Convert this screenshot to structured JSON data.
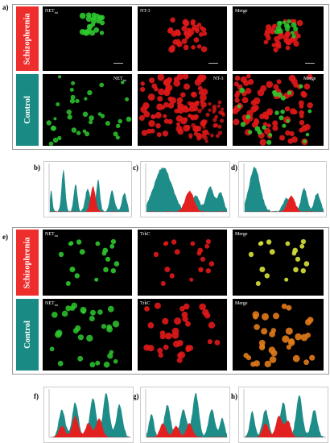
{
  "figure": {
    "labels": {
      "a": "a)",
      "b": "b)",
      "c": "c)",
      "d": "d)",
      "e": "e)",
      "f": "f)",
      "g": "g)",
      "h": "h)"
    }
  },
  "block_a": {
    "row1_label": "Schizophrenia",
    "row2_label": "Control",
    "row1_panels": [
      {
        "text_main": "NET",
        "text_sub": "int"
      },
      {
        "text_main": "NT-3",
        "text_sub": ""
      },
      {
        "text_main": "Merge",
        "text_sub": ""
      }
    ],
    "row2_panels": [
      {
        "text_main": "NET",
        "text_sub": "int"
      },
      {
        "text_main": "NT-3",
        "text_sub": ""
      },
      {
        "text_main": "Merge",
        "text_sub": ""
      }
    ]
  },
  "block_e": {
    "row1_label": "Schizophrenia",
    "row2_label": "Control",
    "row1_panels": [
      {
        "text_main": "NET",
        "text_sub": "int"
      },
      {
        "text_main": "TrkC",
        "text_sub": ""
      },
      {
        "text_main": "Merge",
        "text_sub": ""
      }
    ],
    "row2_panels": [
      {
        "text_main": "NET",
        "text_sub": "int"
      },
      {
        "text_main": "TrkC",
        "text_sub": ""
      },
      {
        "text_main": "Merge",
        "text_sub": ""
      }
    ]
  },
  "colors": {
    "label_schizophrenia": "#ee2d2d",
    "label_control": "#1a8a85",
    "green": "#2ec82e",
    "red": "#e01818",
    "orange": "#e07a1a",
    "yellow": "#d8e23a",
    "teal_profile": "#1e8c88",
    "red_profile": "#e32020"
  }
}
